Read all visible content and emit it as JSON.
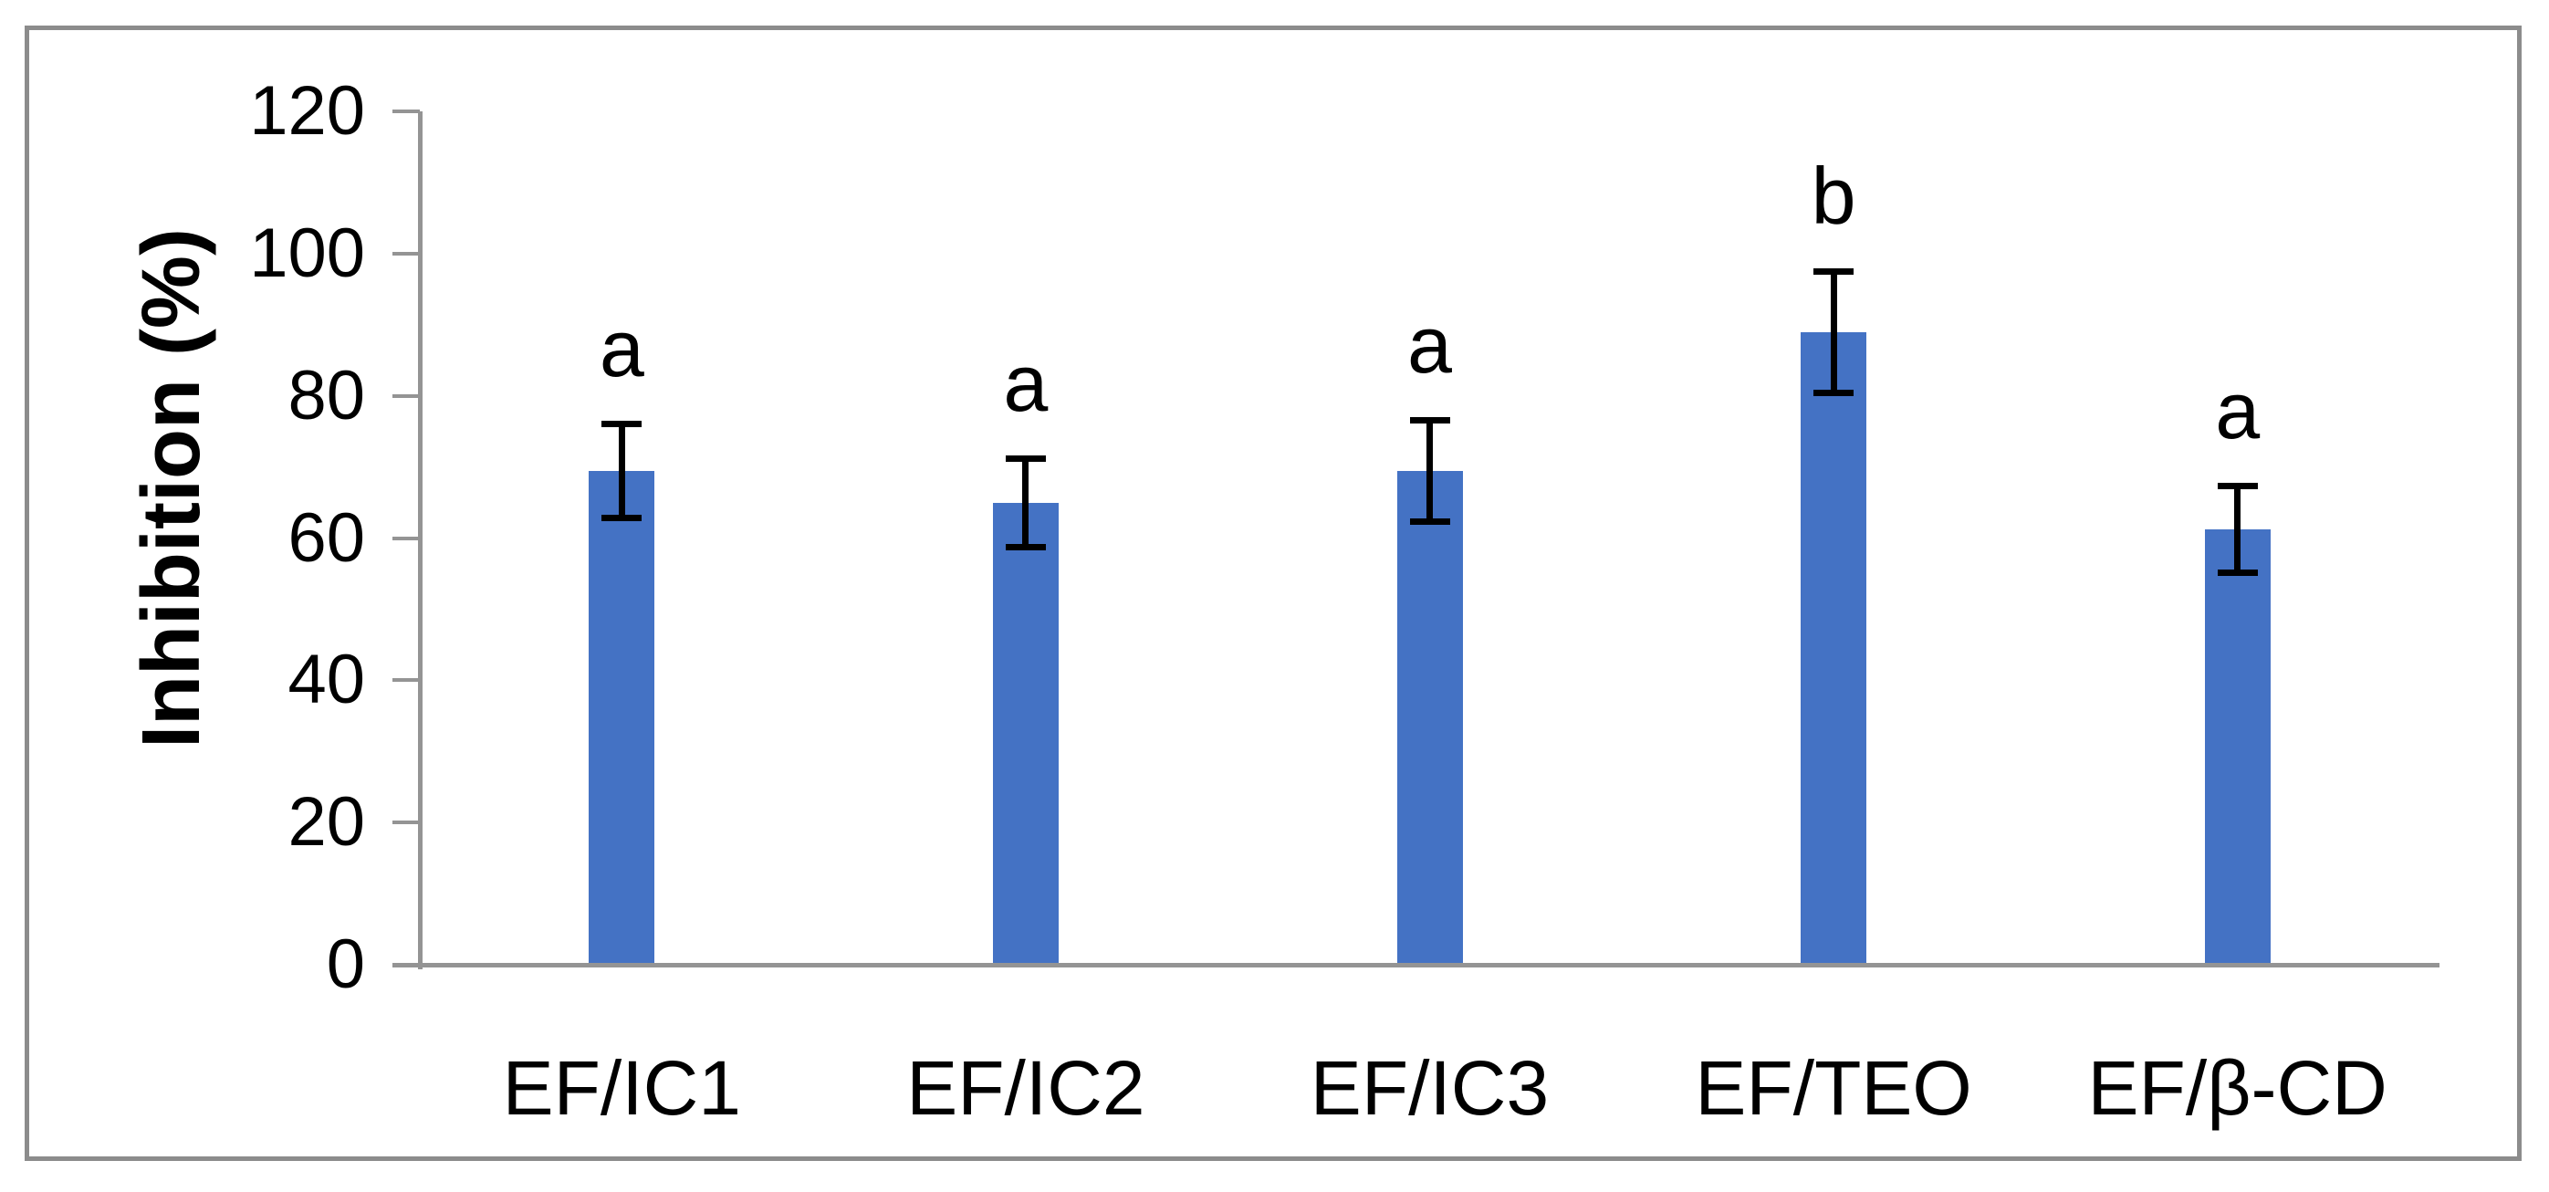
{
  "chart_data": {
    "type": "bar",
    "title": "",
    "ylabel": "Inhibition (%)",
    "xlabel": "",
    "categories": [
      "EF/IC1",
      "EF/IC2",
      "EF/IC3",
      "EF/TEO",
      "EF/β-CD"
    ],
    "values": [
      69.4,
      64.9,
      69.4,
      89.0,
      61.2
    ],
    "errors_plus": [
      6.7,
      6.3,
      7.2,
      8.6,
      6.2
    ],
    "errors_minus": [
      6.7,
      6.3,
      7.2,
      8.6,
      6.2
    ],
    "significance_letters": [
      "a",
      "a",
      "a",
      "b",
      "a"
    ],
    "yticks": [
      0,
      20,
      40,
      60,
      80,
      100,
      120
    ],
    "ylim": [
      0,
      120
    ],
    "grid": false,
    "legend": false,
    "colors": {
      "bar": "#4472C4",
      "axis": "#949494",
      "error_bar": "#000000",
      "text": "#000000",
      "figure_border": "#8C8C8C"
    }
  }
}
